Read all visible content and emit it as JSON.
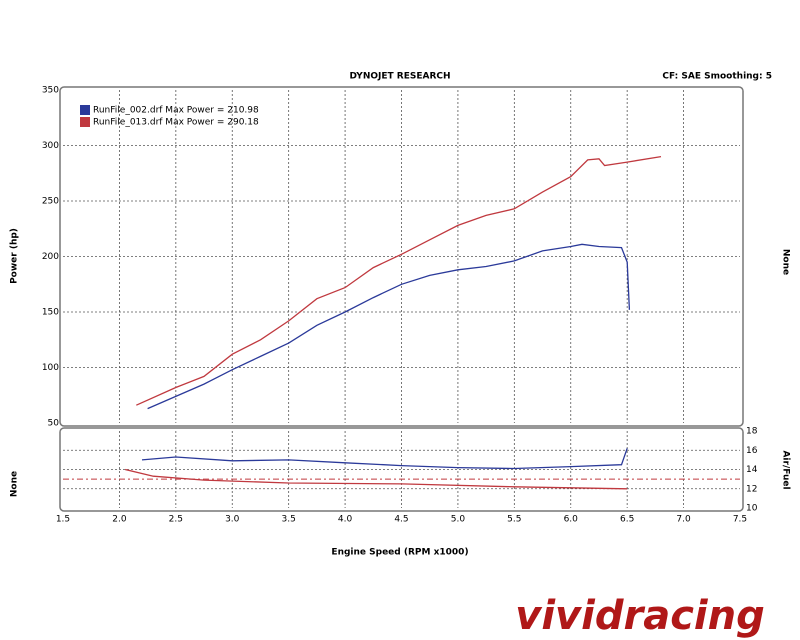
{
  "chart_data": [
    {
      "type": "line",
      "title": "DYNOJET RESEARCH",
      "subtitle": "CF: SAE  Smoothing: 5",
      "y_label": "Power (hp)",
      "y2_label": "None",
      "ylim": [
        50,
        350
      ],
      "yticks": [
        50,
        100,
        150,
        200,
        250,
        300,
        350
      ],
      "grid": true,
      "legend": "top-left",
      "series": [
        {
          "name": "RunFile_002.drf Max Power = 210.98",
          "color": "#2b3a9a",
          "x": [
            2.25,
            2.5,
            2.75,
            3.0,
            3.25,
            3.5,
            3.75,
            4.0,
            4.25,
            4.5,
            4.75,
            5.0,
            5.25,
            5.5,
            5.75,
            6.0,
            6.1,
            6.25,
            6.45,
            6.5,
            6.52
          ],
          "values": [
            63,
            74,
            85,
            98,
            110,
            122,
            138,
            150,
            163,
            175,
            183,
            188,
            191,
            196,
            205,
            209,
            211,
            209,
            208,
            195,
            152
          ]
        },
        {
          "name": "RunFile_013.drf Max Power = 290.18",
          "color": "#c0393f",
          "x": [
            2.15,
            2.5,
            2.75,
            3.0,
            3.25,
            3.5,
            3.75,
            4.0,
            4.25,
            4.5,
            4.75,
            5.0,
            5.25,
            5.5,
            5.75,
            6.0,
            6.15,
            6.25,
            6.3,
            6.5,
            6.8
          ],
          "values": [
            66,
            82,
            92,
            112,
            125,
            142,
            162,
            172,
            190,
            202,
            215,
            228,
            237,
            243,
            258,
            272,
            287,
            288,
            282,
            285,
            290
          ]
        }
      ]
    },
    {
      "type": "line",
      "x_label": "Engine Speed (RPM x1000)",
      "y_label": "None",
      "y2_label": "Air/Fuel",
      "xlim": [
        1.5,
        7.5
      ],
      "xticks": [
        1.5,
        {
          "value": 2,
          "label": "2.0"
        },
        2.5,
        {
          "value": 3,
          "label": "3.0"
        },
        3.5,
        {
          "value": 4,
          "label": "4.0"
        },
        4.5,
        {
          "value": 5,
          "label": "5.0"
        },
        5.5,
        {
          "value": 6,
          "label": "6.0"
        },
        6.5,
        {
          "value": 7,
          "label": "7.0"
        },
        7.5
      ],
      "y2lim": [
        10,
        18
      ],
      "y2ticks": [
        10,
        12,
        14,
        16,
        18
      ],
      "grid": true,
      "reference": 13,
      "reference_color": "#c0393f",
      "series": [
        {
          "color": "#2b3a9a",
          "axis": "y2",
          "x": [
            2.2,
            2.5,
            3.0,
            3.5,
            4.0,
            4.5,
            5.0,
            5.5,
            6.0,
            6.45,
            6.5
          ],
          "values": [
            15.0,
            15.3,
            14.9,
            15.0,
            14.7,
            14.4,
            14.2,
            14.1,
            14.3,
            14.5,
            16.2
          ]
        },
        {
          "color": "#c0393f",
          "axis": "y2",
          "x": [
            2.05,
            2.3,
            2.75,
            3.5,
            4.5,
            5.5,
            6.0,
            6.5
          ],
          "values": [
            14.0,
            13.3,
            12.9,
            12.6,
            12.5,
            12.2,
            12.1,
            12.0
          ]
        }
      ]
    }
  ],
  "watermark": "vividracing"
}
